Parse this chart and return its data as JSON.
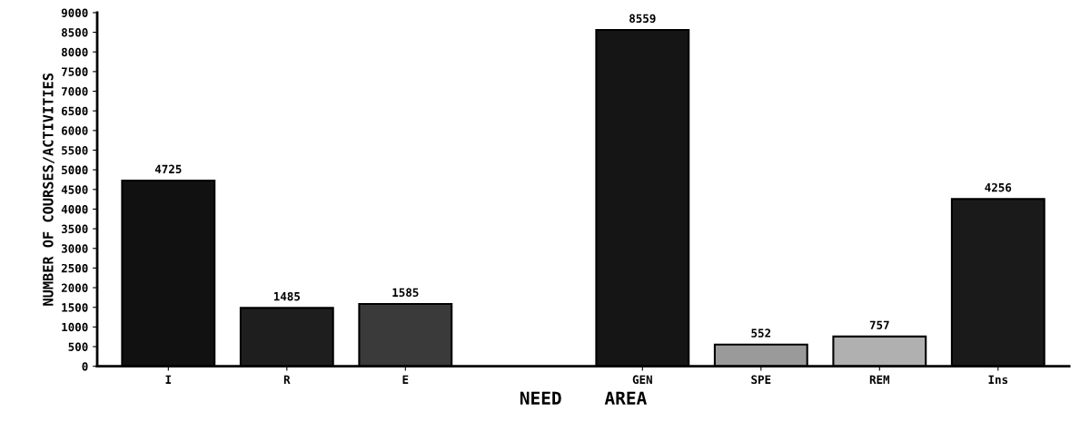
{
  "chart_data": {
    "type": "bar",
    "xlabel": "NEED    AREA",
    "ylabel": "NUMBER OF COURSES/ACTIVITIES",
    "categories": [
      "I",
      "R",
      "E",
      null,
      "GEN",
      "SPE",
      "REM",
      "Ins"
    ],
    "values": [
      4725,
      1485,
      1585,
      null,
      8559,
      552,
      757,
      4256
    ],
    "colors": [
      "#111111",
      "#1e1e1e",
      "#3a3a3a",
      "#000000",
      "#151515",
      "#9a9a9a",
      "#b0b0b0",
      "#1a1a1a"
    ],
    "data_labels": true,
    "ylim": [
      0,
      9000
    ],
    "yticks": [
      0,
      500,
      1000,
      1500,
      2000,
      2500,
      3000,
      3500,
      4000,
      4500,
      5000,
      5500,
      6000,
      6500,
      7000,
      7500,
      8000,
      8500,
      9000
    ],
    "grid": false,
    "legend": false
  }
}
